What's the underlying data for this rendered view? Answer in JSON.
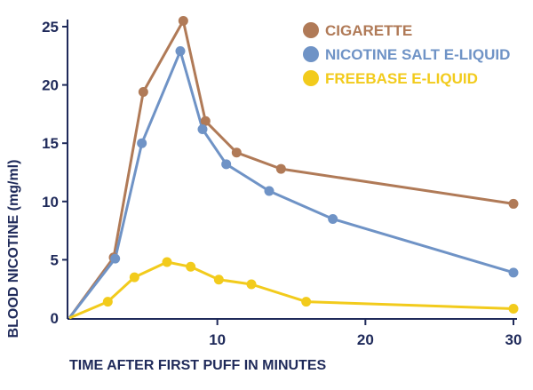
{
  "chart_data": {
    "type": "line",
    "title": "",
    "xlabel": "TIME AFTER FIRST PUFF IN MINUTES",
    "ylabel": "BLOOD NICOTINE (mg/ml)",
    "xlim": [
      0,
      30
    ],
    "ylim": [
      0,
      25
    ],
    "x_ticks": [
      10,
      20,
      30
    ],
    "y_ticks": [
      0,
      5,
      10,
      15,
      20,
      25
    ],
    "grid": false,
    "legend_position": "top-right",
    "series": [
      {
        "name": "CIGARETTE",
        "color": "#b07a57",
        "points": [
          [
            0,
            0
          ],
          [
            3,
            5.2
          ],
          [
            5,
            19.4
          ],
          [
            7.7,
            25.5
          ],
          [
            9.2,
            16.9
          ],
          [
            11.3,
            14.2
          ],
          [
            14.3,
            12.8
          ],
          [
            30,
            9.8
          ]
        ]
      },
      {
        "name": "NICOTINE SALT E-LIQUID",
        "color": "#6f93c6",
        "points": [
          [
            0,
            0
          ],
          [
            3.1,
            5.1
          ],
          [
            4.9,
            15
          ],
          [
            7.5,
            22.9
          ],
          [
            9,
            16.2
          ],
          [
            10.6,
            13.2
          ],
          [
            13.5,
            10.9
          ],
          [
            17.8,
            8.5
          ],
          [
            30,
            3.9
          ]
        ]
      },
      {
        "name": "FREEBASE E-LIQUID",
        "color": "#f2cb1c",
        "points": [
          [
            0,
            0
          ],
          [
            2.6,
            1.4
          ],
          [
            4.4,
            3.5
          ],
          [
            6.6,
            4.8
          ],
          [
            8.2,
            4.4
          ],
          [
            10.1,
            3.3
          ],
          [
            12.3,
            2.9
          ],
          [
            16,
            1.4
          ],
          [
            30,
            0.8
          ]
        ]
      }
    ]
  }
}
